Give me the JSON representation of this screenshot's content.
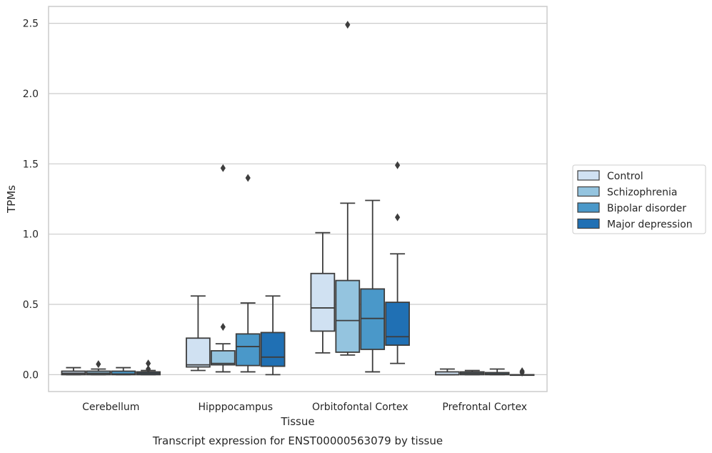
{
  "caption": "Transcript expression for ENST00000563079 by tissue",
  "chart_data": {
    "type": "box",
    "title": "",
    "xlabel": "Tissue",
    "ylabel": "TPMs",
    "ylim": [
      -0.12,
      2.62
    ],
    "yticks": [
      0.0,
      0.5,
      1.0,
      1.5,
      2.0,
      2.5
    ],
    "grid": "horizontal",
    "legend_position": "right",
    "categories": [
      "Cerebellum",
      "Hipppocampus",
      "Orbitofontal Cortex",
      "Prefrontal Cortex"
    ],
    "series": [
      {
        "name": "Control",
        "color": "#d0e1f2",
        "boxes": [
          {
            "whislo": 0.0,
            "q1": 0.0,
            "med": 0.01,
            "q3": 0.025,
            "whishi": 0.05,
            "fliers": []
          },
          {
            "whislo": 0.03,
            "q1": 0.055,
            "med": 0.07,
            "q3": 0.26,
            "whishi": 0.56,
            "fliers": []
          },
          {
            "whislo": 0.155,
            "q1": 0.31,
            "med": 0.475,
            "q3": 0.72,
            "whishi": 1.01,
            "fliers": []
          },
          {
            "whislo": 0.0,
            "q1": 0.0,
            "med": 0.0,
            "q3": 0.02,
            "whishi": 0.04,
            "fliers": []
          }
        ]
      },
      {
        "name": "Schizophrenia",
        "color": "#94c4df",
        "boxes": [
          {
            "whislo": 0.0,
            "q1": 0.0,
            "med": 0.01,
            "q3": 0.025,
            "whishi": 0.04,
            "fliers": [
              0.075
            ]
          },
          {
            "whislo": 0.02,
            "q1": 0.07,
            "med": 0.08,
            "q3": 0.17,
            "whishi": 0.22,
            "fliers": [
              0.34,
              1.47
            ]
          },
          {
            "whislo": 0.14,
            "q1": 0.16,
            "med": 0.385,
            "q3": 0.67,
            "whishi": 1.22,
            "fliers": [
              2.49
            ]
          },
          {
            "whislo": 0.0,
            "q1": 0.0,
            "med": 0.01,
            "q3": 0.02,
            "whishi": 0.03,
            "fliers": []
          }
        ]
      },
      {
        "name": "Bipolar disorder",
        "color": "#4a98c9",
        "boxes": [
          {
            "whislo": 0.0,
            "q1": 0.0,
            "med": 0.005,
            "q3": 0.025,
            "whishi": 0.05,
            "fliers": []
          },
          {
            "whislo": 0.02,
            "q1": 0.065,
            "med": 0.2,
            "q3": 0.29,
            "whishi": 0.51,
            "fliers": [
              1.4
            ]
          },
          {
            "whislo": 0.02,
            "q1": 0.18,
            "med": 0.4,
            "q3": 0.61,
            "whishi": 1.24,
            "fliers": []
          },
          {
            "whislo": 0.0,
            "q1": 0.0,
            "med": 0.005,
            "q3": 0.015,
            "whishi": 0.04,
            "fliers": []
          }
        ]
      },
      {
        "name": "Major depression",
        "color": "#2070b4",
        "boxes": [
          {
            "whislo": 0.0,
            "q1": 0.0,
            "med": 0.01,
            "q3": 0.02,
            "whishi": 0.03,
            "fliers": [
              0.04,
              0.08
            ]
          },
          {
            "whislo": 0.0,
            "q1": 0.06,
            "med": 0.125,
            "q3": 0.3,
            "whishi": 0.56,
            "fliers": []
          },
          {
            "whislo": 0.08,
            "q1": 0.21,
            "med": 0.27,
            "q3": 0.515,
            "whishi": 0.86,
            "fliers": [
              1.12,
              1.49
            ]
          },
          {
            "whislo": 0.0,
            "q1": 0.0,
            "med": 0.0,
            "q3": 0.0,
            "whishi": 0.0,
            "fliers": [
              0.015,
              0.025
            ]
          }
        ]
      }
    ]
  }
}
